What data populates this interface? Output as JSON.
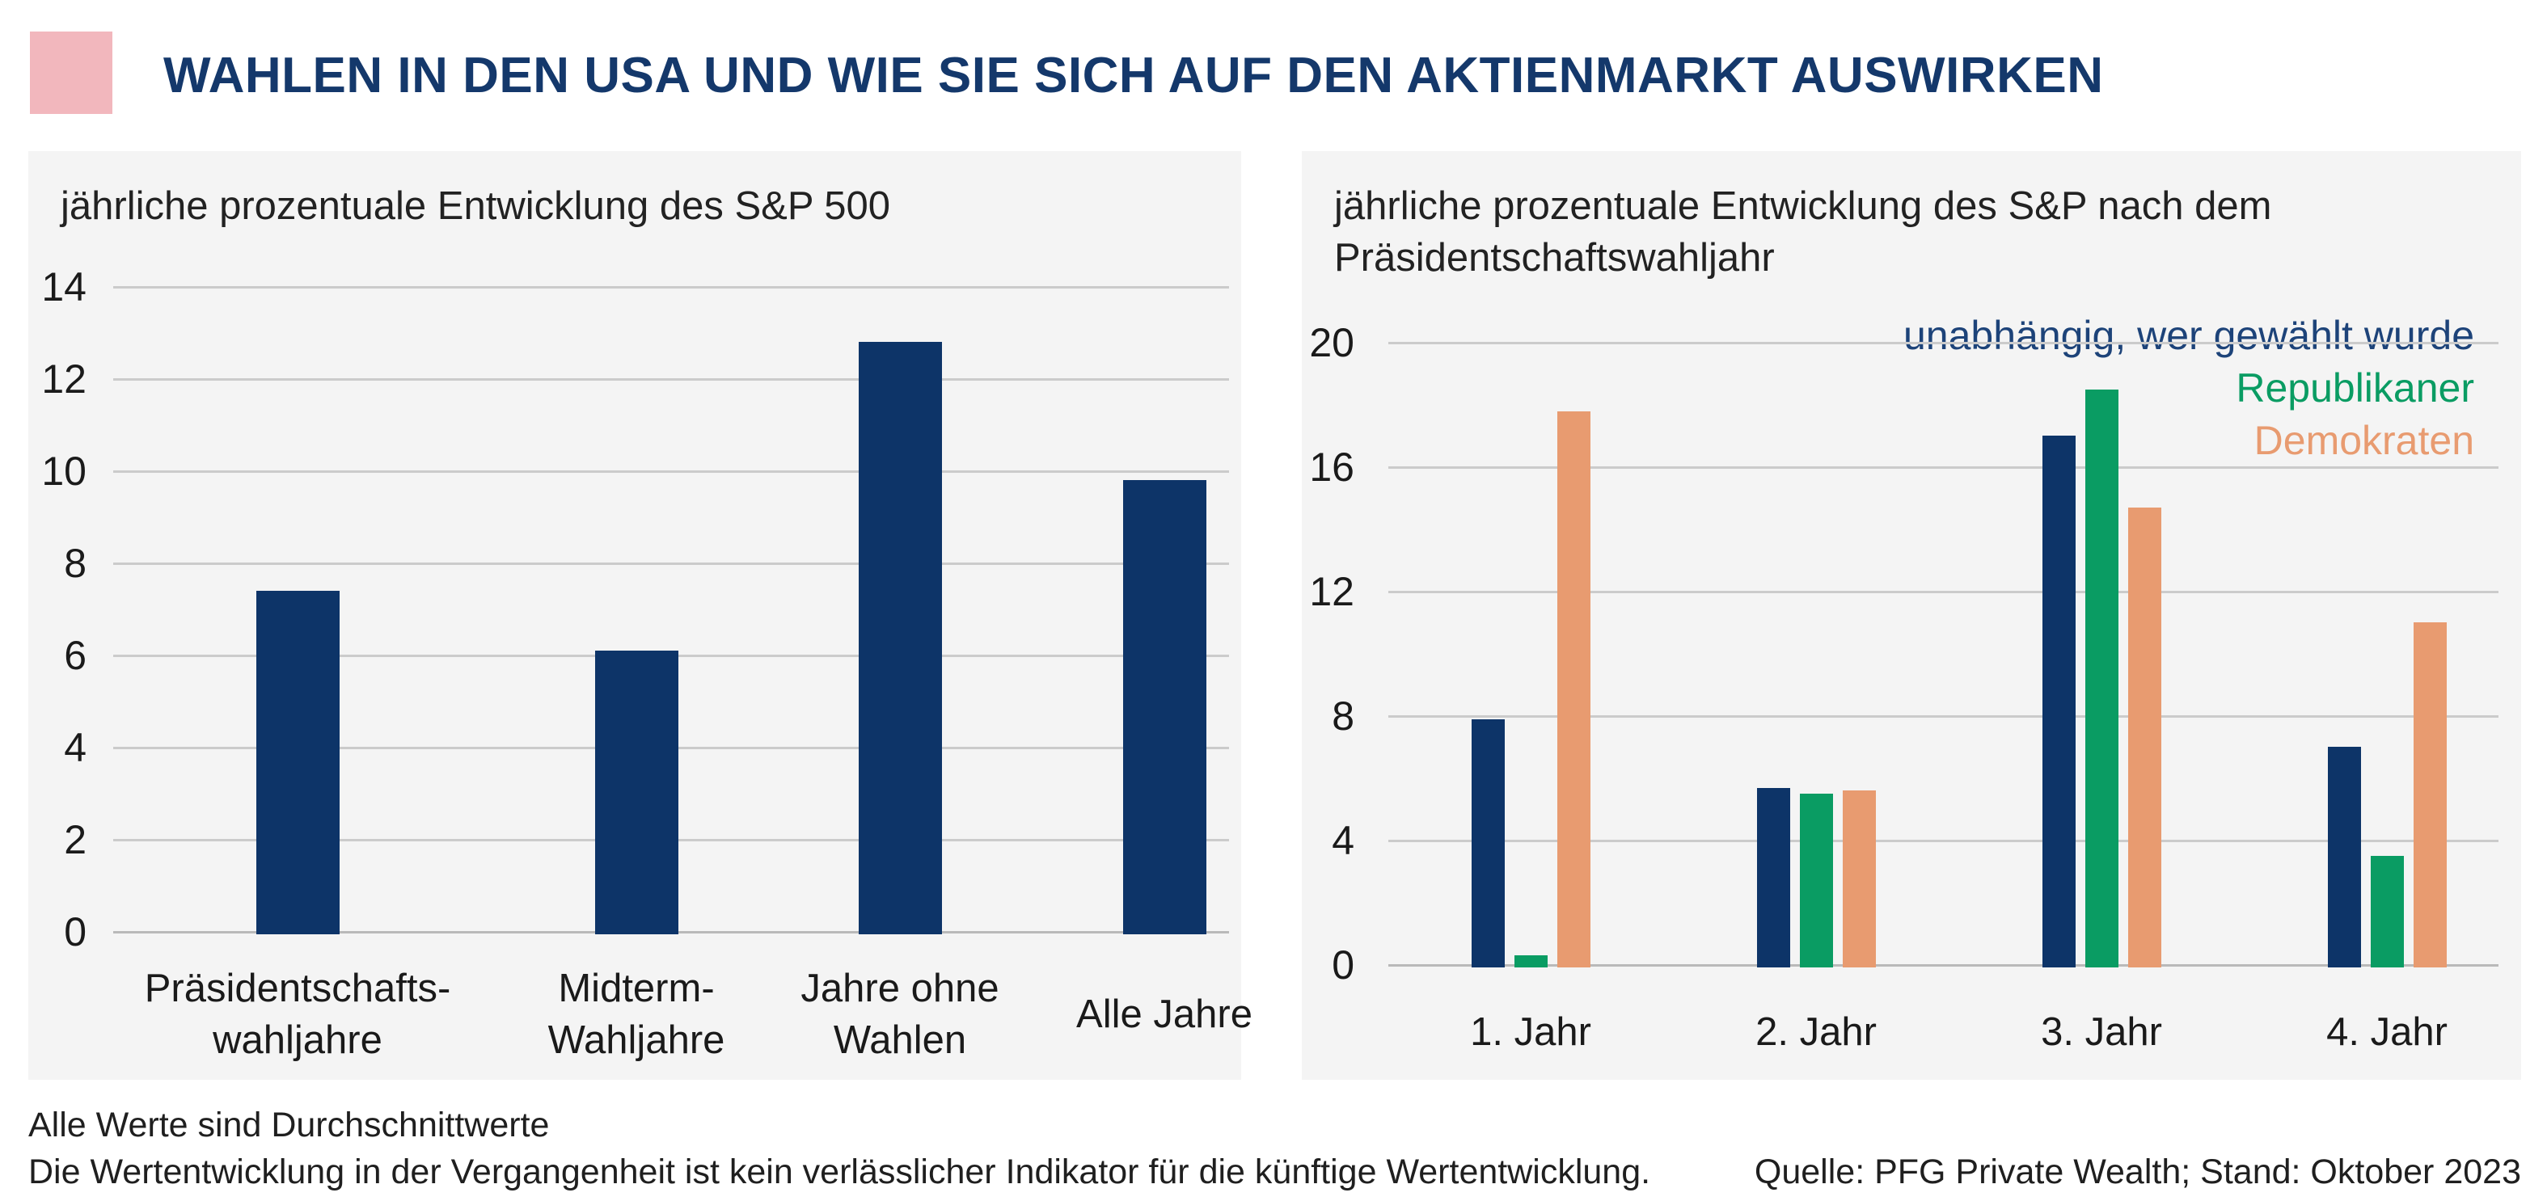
{
  "header": {
    "title": "WAHLEN IN DEN USA UND WIE SIE SICH AUF DEN AKTIENMARKT AUSWIRKEN"
  },
  "colors": {
    "accent_pink": "#f2b7bd",
    "title_navy": "#14386b",
    "bar_navy": "#0d3468",
    "bar_green": "#0a9c63",
    "bar_orange": "#e89b70",
    "panel_background": "#f4f4f4",
    "gridline": "#cbcbcb",
    "zero_line": "#b9b9b9"
  },
  "chart_data": [
    {
      "type": "bar",
      "title": "jährliche prozentuale Entwicklung des S&P 500",
      "categories": [
        [
          "Präsidentschafts-",
          "wahljahre"
        ],
        [
          "Midterm-",
          "Wahljahre"
        ],
        [
          "Jahre ohne",
          "Wahlen"
        ],
        [
          "Alle Jahre"
        ]
      ],
      "values": [
        7.4,
        6.1,
        12.8,
        9.8
      ],
      "xlabel": "",
      "ylabel": "",
      "ylim": [
        0,
        14
      ],
      "yticks": [
        0,
        2,
        4,
        6,
        8,
        10,
        12,
        14
      ],
      "grid": true,
      "bar_color": "#0d3468",
      "legend_position": "none"
    },
    {
      "type": "bar",
      "title": "jährliche prozentuale Entwicklung des S&P nach dem Präsidentschaftswahljahr",
      "title_lines": [
        "jährliche prozentuale Entwicklung des S&P nach dem",
        "Präsidentschaftswahljahr"
      ],
      "categories": [
        "1. Jahr",
        "2. Jahr",
        "3. Jahr",
        "4. Jahr"
      ],
      "series": [
        {
          "name": "unabhängig, wer gewählt wurde",
          "color": "#0d3468",
          "legend_color": "#1d4379",
          "values": [
            7.9,
            5.7,
            17.0,
            7.0
          ]
        },
        {
          "name": "Republikaner",
          "color": "#0a9c63",
          "legend_color": "#0a9c63",
          "values": [
            0.3,
            5.5,
            18.5,
            3.5
          ]
        },
        {
          "name": "Demokraten",
          "color": "#e89b70",
          "legend_color": "#e89b70",
          "values": [
            17.8,
            5.6,
            14.7,
            11.0
          ]
        }
      ],
      "xlabel": "",
      "ylabel": "",
      "ylim": [
        0,
        20
      ],
      "yticks": [
        0,
        4,
        8,
        12,
        16,
        20
      ],
      "grid": true,
      "legend_position": "top-right"
    }
  ],
  "footer": {
    "note1": "Alle Werte sind Durchschnittwerte",
    "note2": "Die Wertentwicklung in der Vergangenheit ist kein verlässlicher Indikator für die künftige Wertentwicklung.",
    "source": "Quelle: PFG Private Wealth; Stand: Oktober 2023"
  }
}
